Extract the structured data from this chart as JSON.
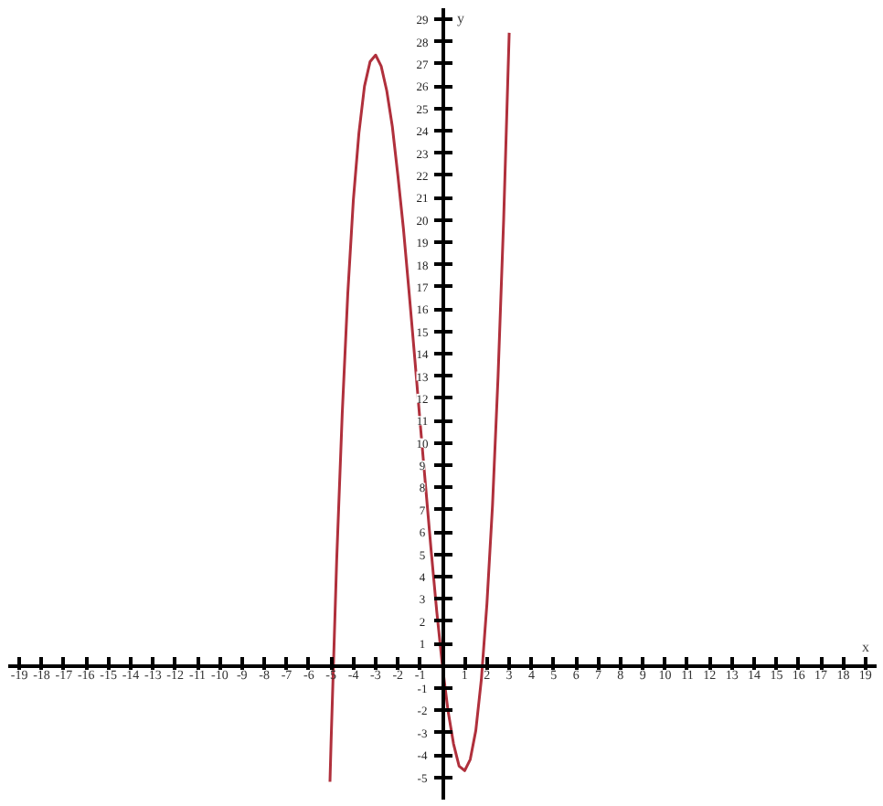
{
  "chart_data": {
    "type": "line",
    "xlabel": "x",
    "ylabel": "y",
    "grid": false,
    "tick_labels": true,
    "xlim": [
      -19.5,
      19.5
    ],
    "ylim": [
      -6,
      29.5
    ],
    "xticks": [
      -19,
      -18,
      -17,
      -16,
      -15,
      -14,
      -13,
      -12,
      -11,
      -10,
      -9,
      -8,
      -7,
      -6,
      -5,
      -4,
      -3,
      -2,
      -1,
      {
        "value": 0,
        "label": null
      },
      1,
      2,
      3,
      4,
      5,
      6,
      7,
      8,
      9,
      10,
      11,
      12,
      13,
      14,
      15,
      16,
      17,
      18,
      19
    ],
    "yticks": [
      -5,
      -4,
      -3,
      -2,
      -1,
      {
        "value": 0,
        "label": null
      },
      1,
      2,
      3,
      4,
      5,
      6,
      7,
      8,
      9,
      10,
      11,
      12,
      13,
      14,
      15,
      16,
      17,
      18,
      19,
      20,
      21,
      22,
      23,
      24,
      25,
      26,
      27,
      28,
      29
    ],
    "series": [
      {
        "color": "#b0303c",
        "x": [
          -5.05,
          -5.0,
          -4.75,
          -4.5,
          -4.25,
          -4.0,
          -3.75,
          -3.5,
          -3.25,
          -3.0,
          -2.75,
          -2.5,
          -2.25,
          -2.0,
          -1.75,
          -1.5,
          -1.25,
          -1.0,
          -0.5,
          -0.25,
          0,
          0.25,
          0.5,
          0.75,
          1.0,
          1.25,
          1.5,
          1.75,
          2.0,
          2.25,
          2.5,
          2.75,
          3.0
        ],
        "values": [
          -5.2,
          -3.4,
          4.7,
          11.3,
          16.7,
          20.9,
          23.9,
          26.0,
          27.1,
          27.4,
          26.9,
          25.8,
          24.2,
          22.0,
          19.6,
          16.8,
          13.9,
          10.9,
          5.1,
          2.4,
          0,
          -2.0,
          -3.5,
          -4.5,
          -4.7,
          -4.2,
          -2.9,
          -0.6,
          2.8,
          7.2,
          13.0,
          20.0,
          28.4
        ]
      }
    ]
  }
}
